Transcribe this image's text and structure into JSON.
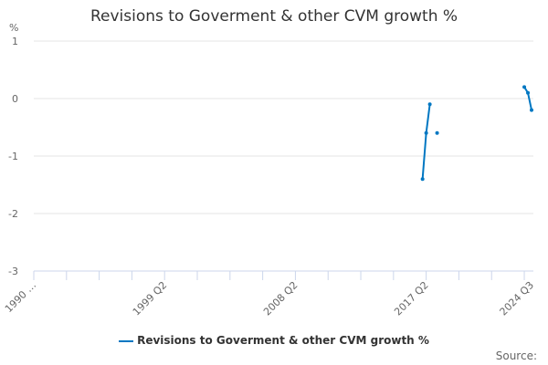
{
  "chart_data": {
    "type": "line",
    "title": "Revisions to Goverment & other CVM growth %",
    "ylabel": "%",
    "ylim": [
      -3,
      1
    ],
    "yticks": [
      1,
      0,
      -1,
      -2,
      -3
    ],
    "xrange": [
      "1990 Q2",
      "2024 Q3"
    ],
    "xtick_labels": [
      "1990 …",
      "1999 Q2",
      "2008 Q2",
      "2017 Q2",
      "2024 Q3"
    ],
    "grid": true,
    "legend_position": "bottom",
    "series": [
      {
        "name": "Revisions to Goverment & other CVM growth %",
        "color": "#0077c2",
        "points": [
          {
            "x": "2017 Q1",
            "y": -1.4
          },
          {
            "x": "2017 Q2",
            "y": -0.6
          },
          {
            "x": "2017 Q3",
            "y": -0.1
          },
          {
            "x": "2017 Q4",
            "y": null
          },
          {
            "x": "2018 Q1",
            "y": -0.6
          },
          {
            "x": "2018 Q2",
            "y": null
          },
          {
            "x": "2024 Q1",
            "y": 0.2
          },
          {
            "x": "2024 Q2",
            "y": 0.1
          },
          {
            "x": "2024 Q3",
            "y": -0.2
          }
        ]
      }
    ]
  },
  "source_label": "Source:"
}
